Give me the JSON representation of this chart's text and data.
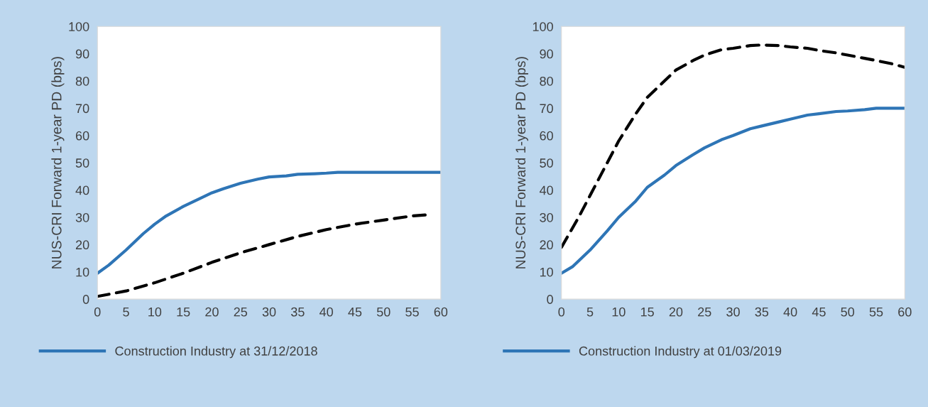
{
  "chart_data": [
    {
      "type": "line",
      "ylabel": "NUS-CRI Forward 1-year PD (bps)",
      "xlim": [
        0,
        60
      ],
      "xticks": [
        0,
        5,
        10,
        15,
        20,
        25,
        30,
        35,
        40,
        45,
        50,
        55,
        60
      ],
      "ylim": [
        0,
        100
      ],
      "yticks": [
        0,
        10,
        20,
        30,
        40,
        50,
        60,
        70,
        80,
        90,
        100
      ],
      "grid": false,
      "legend": "bottom",
      "series": [
        {
          "color": "#000000",
          "line_style": "dashed",
          "x": [
            0,
            5,
            10,
            15,
            20,
            25,
            30,
            35,
            40,
            45,
            50,
            55,
            58
          ],
          "values": [
            1,
            3,
            6,
            9.5,
            13.5,
            17,
            20,
            23,
            25.5,
            27.5,
            29,
            30.5,
            31
          ]
        },
        {
          "name": "Construction Industry at 31/12/2018",
          "color": "#2e75b6",
          "line_style": "solid",
          "x": [
            0,
            2,
            5,
            8,
            10,
            12,
            15,
            18,
            20,
            22,
            25,
            28,
            30,
            33,
            35,
            38,
            40,
            42,
            60
          ],
          "values": [
            9.5,
            12.5,
            18,
            24,
            27.5,
            30.5,
            34,
            37,
            39,
            40.5,
            42.5,
            44,
            44.8,
            45.2,
            45.8,
            46,
            46.2,
            46.5,
            46.5
          ]
        }
      ]
    },
    {
      "type": "line",
      "ylabel": "NUS-CRI Forward 1-year PD (bps)",
      "xlim": [
        0,
        60
      ],
      "xticks": [
        0,
        5,
        10,
        15,
        20,
        25,
        30,
        35,
        40,
        45,
        50,
        55,
        60
      ],
      "ylim": [
        0,
        100
      ],
      "yticks": [
        0,
        10,
        20,
        30,
        40,
        50,
        60,
        70,
        80,
        90,
        100
      ],
      "grid": false,
      "legend": "bottom",
      "series": [
        {
          "color": "#000000",
          "line_style": "dashed",
          "x": [
            0,
            3,
            5,
            8,
            10,
            13,
            15,
            18,
            20,
            23,
            25,
            28,
            30,
            33,
            35,
            38,
            40,
            43,
            45,
            48,
            50,
            53,
            55,
            58,
            60
          ],
          "values": [
            19,
            30,
            38,
            50,
            58,
            68,
            74,
            80,
            84,
            87.5,
            89.5,
            91.5,
            92,
            93,
            93.2,
            93,
            92.5,
            92,
            91.2,
            90.3,
            89.5,
            88.3,
            87.5,
            86.2,
            85
          ]
        },
        {
          "name": "Construction Industry at 01/03/2019",
          "color": "#2e75b6",
          "line_style": "solid",
          "x": [
            0,
            2,
            5,
            8,
            10,
            13,
            15,
            18,
            20,
            23,
            25,
            28,
            30,
            33,
            35,
            38,
            40,
            43,
            45,
            48,
            50,
            53,
            55,
            60
          ],
          "values": [
            9.5,
            12,
            18,
            25,
            30,
            36,
            41,
            45.5,
            49,
            53,
            55.5,
            58.5,
            60,
            62.5,
            63.5,
            65,
            66,
            67.5,
            68,
            68.8,
            69,
            69.5,
            70,
            70
          ]
        }
      ]
    }
  ]
}
